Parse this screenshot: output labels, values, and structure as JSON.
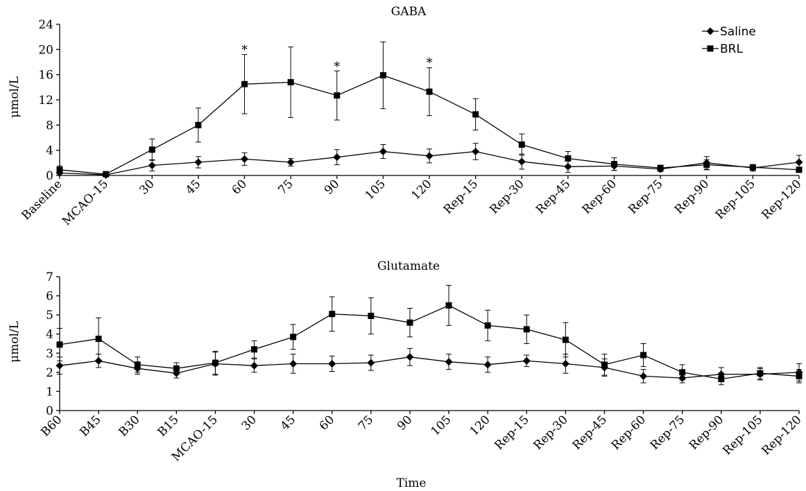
{
  "chart_data": [
    {
      "type": "line",
      "title": "GABA",
      "ylabel": "μmol/L",
      "xlabel": "",
      "ylim": [
        0,
        24
      ],
      "yticks": [
        0,
        4,
        8,
        12,
        16,
        20,
        24
      ],
      "categories": [
        "Baseline",
        "MCAO-15",
        "30",
        "45",
        "60",
        "75",
        "90",
        "105",
        "120",
        "Rep-15",
        "Rep-30",
        "Rep-45",
        "Rep-60",
        "Rep-75",
        "Rep-90",
        "Rep-105",
        "Rep-120"
      ],
      "series": [
        {
          "name": "Saline",
          "marker": "diamond",
          "values": [
            0.4,
            0.1,
            1.6,
            2.1,
            2.6,
            2.1,
            2.9,
            3.8,
            3.1,
            3.8,
            2.2,
            1.4,
            1.5,
            1.0,
            2.0,
            1.2,
            2.1
          ],
          "errors": [
            0.5,
            0.2,
            0.9,
            0.9,
            1.0,
            0.6,
            1.2,
            1.1,
            1.1,
            1.3,
            1.2,
            0.9,
            0.7,
            0.4,
            1.0,
            0.5,
            1.1
          ]
        },
        {
          "name": "BRL",
          "marker": "square",
          "values": [
            0.9,
            0.2,
            4.1,
            8.0,
            14.5,
            14.8,
            12.7,
            15.9,
            13.3,
            9.7,
            4.9,
            2.7,
            1.8,
            1.2,
            1.7,
            1.3,
            0.9
          ],
          "errors": [
            0.6,
            0.2,
            1.7,
            2.7,
            4.7,
            5.6,
            3.9,
            5.3,
            3.8,
            2.5,
            1.7,
            1.1,
            1.0,
            0.4,
            0.8,
            0.4,
            0.4
          ]
        }
      ],
      "annotations": [
        {
          "text": "*",
          "category": "60",
          "y": 19.9
        },
        {
          "text": "*",
          "category": "90",
          "y": 17.3
        },
        {
          "text": "*",
          "category": "120",
          "y": 17.9
        }
      ],
      "legend": {
        "position": "top-right"
      },
      "grid": false
    },
    {
      "type": "line",
      "title": "Glutamate",
      "ylabel": "μmol/L",
      "xlabel": "Time",
      "ylim": [
        0,
        7
      ],
      "yticks": [
        0,
        1,
        2,
        3,
        4,
        5,
        6,
        7
      ],
      "categories": [
        "B60",
        "B45",
        "B30",
        "B15",
        "MCAO-15",
        "30",
        "45",
        "60",
        "75",
        "90",
        "105",
        "120",
        "Rep-15",
        "Rep-30",
        "Rep-45",
        "Rep-60",
        "Rep-75",
        "Rep-90",
        "Rep-105",
        "Rep-120"
      ],
      "series": [
        {
          "name": "Saline",
          "marker": "diamond",
          "values": [
            2.35,
            2.6,
            2.2,
            1.95,
            2.45,
            2.35,
            2.45,
            2.45,
            2.5,
            2.8,
            2.55,
            2.4,
            2.6,
            2.45,
            2.25,
            1.8,
            1.7,
            1.9,
            1.9,
            2.0
          ],
          "errors": [
            0.45,
            0.35,
            0.3,
            0.25,
            0.6,
            0.35,
            0.5,
            0.4,
            0.4,
            0.45,
            0.4,
            0.4,
            0.3,
            0.5,
            0.45,
            0.35,
            0.25,
            0.35,
            0.3,
            0.45
          ]
        },
        {
          "name": "BRL",
          "marker": "square",
          "values": [
            3.45,
            3.75,
            2.4,
            2.2,
            2.5,
            3.2,
            3.85,
            5.05,
            4.95,
            4.6,
            5.5,
            4.45,
            4.25,
            3.7,
            2.4,
            2.9,
            2.0,
            1.65,
            1.95,
            1.8
          ],
          "errors": [
            0.85,
            1.1,
            0.4,
            0.3,
            0.6,
            0.45,
            0.65,
            0.9,
            0.95,
            0.75,
            1.05,
            0.8,
            0.75,
            0.9,
            0.55,
            0.6,
            0.4,
            0.3,
            0.3,
            0.35
          ]
        }
      ],
      "legend": {
        "position": "none"
      },
      "grid": false
    }
  ],
  "legend_items": [
    {
      "label": "Saline",
      "marker": "diamond"
    },
    {
      "label": "BRL",
      "marker": "square"
    }
  ]
}
